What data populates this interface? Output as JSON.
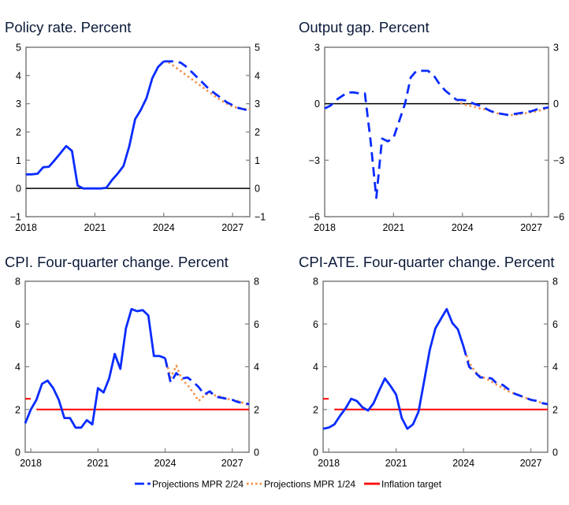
{
  "legend": [
    {
      "label": "Projections MPR 2/24",
      "color": "#0a2cff",
      "style": "dashed"
    },
    {
      "label": "Projections MPR 1/24",
      "color": "#f5914a",
      "style": "dotted"
    },
    {
      "label": "Inflation target",
      "color": "#ff0000",
      "style": "solid"
    }
  ],
  "chart_data": [
    {
      "type": "line",
      "title": "Policy rate. Percent",
      "xlim": [
        "2018Q1",
        "2027Q4"
      ],
      "xticks": [
        "2018",
        "2021",
        "2024",
        "2027"
      ],
      "ylim": [
        -1,
        5
      ],
      "yticks": [
        "−1",
        "0",
        "1",
        "2",
        "3",
        "4",
        "5"
      ],
      "zero_line": true,
      "series": [
        {
          "role": "history",
          "color": "#0a2cff",
          "style": "solid",
          "start": "2018Q1",
          "values": [
            0.5,
            0.5,
            0.52,
            0.75,
            0.77,
            1.0,
            1.25,
            1.5,
            1.33,
            0.1,
            0.0,
            0.0,
            0.0,
            0.0,
            0.02,
            0.3,
            0.53,
            0.8,
            1.5,
            2.45,
            2.78,
            3.2,
            3.9,
            4.3,
            4.5
          ]
        },
        {
          "name": "Projections MPR 2/24",
          "color": "#0a2cff",
          "style": "dashed",
          "start": "2024Q1",
          "values": [
            4.5,
            4.5,
            4.5,
            4.45,
            4.3,
            4.1,
            3.9,
            3.7,
            3.5,
            3.35,
            3.2,
            3.05,
            2.95,
            2.85,
            2.8,
            2.75
          ]
        },
        {
          "name": "Projections MPR 1/24",
          "color": "#f5914a",
          "style": "dotted",
          "start": "2024Q1",
          "values": [
            4.5,
            4.45,
            4.3,
            4.15,
            4.0,
            3.85,
            3.7,
            3.55,
            3.4,
            3.25,
            3.12,
            3.0,
            2.9,
            2.85,
            2.82,
            2.8
          ]
        }
      ]
    },
    {
      "type": "line",
      "title": "Output gap. Percent",
      "xlim": [
        "2018Q1",
        "2027Q4"
      ],
      "xticks": [
        "2018",
        "2021",
        "2024",
        "2027"
      ],
      "ylim": [
        -6,
        3
      ],
      "yticks": [
        "−6",
        "−3",
        "0",
        "3"
      ],
      "zero_line": true,
      "series": [
        {
          "role": "history",
          "color": "#0a2cff",
          "style": "dashed",
          "start": "2018Q1",
          "values": [
            -0.25,
            -0.1,
            0.2,
            0.4,
            0.6,
            0.6,
            0.55,
            0.55,
            -2.0,
            -5.0,
            -1.85,
            -2.0,
            -1.8,
            -0.9,
            0.0,
            1.4,
            1.75,
            1.75,
            1.75,
            1.5,
            1.05,
            0.7,
            0.45,
            0.2
          ]
        },
        {
          "name": "Projections MPR 2/24",
          "color": "#0a2cff",
          "style": "dashed",
          "start": "2023Q4",
          "values": [
            0.2,
            0.2,
            0.15,
            0.0,
            -0.1,
            -0.25,
            -0.4,
            -0.5,
            -0.55,
            -0.6,
            -0.55,
            -0.5,
            -0.45,
            -0.4,
            -0.3,
            -0.25,
            -0.2
          ]
        },
        {
          "name": "Projections MPR 1/24",
          "color": "#f5914a",
          "style": "dotted",
          "start": "2023Q4",
          "values": [
            0.2,
            0.0,
            -0.1,
            -0.15,
            -0.25,
            -0.3,
            -0.4,
            -0.5,
            -0.55,
            -0.6,
            -0.6,
            -0.55,
            -0.5,
            -0.45,
            -0.4,
            -0.3,
            -0.25
          ]
        }
      ]
    },
    {
      "type": "line",
      "title": "CPI. Four-quarter change. Percent",
      "xlim": [
        "2017Q4",
        "2027Q4"
      ],
      "xticks": [
        "2018",
        "2021",
        "2024",
        "2027"
      ],
      "ylim": [
        0,
        8
      ],
      "yticks": [
        "0",
        "2",
        "4",
        "6",
        "8"
      ],
      "zero_line": false,
      "target": [
        {
          "from": "2017Q4",
          "to": "2018Q1",
          "value": 2.5
        },
        {
          "from": "2018Q2",
          "to": "2027Q4",
          "value": 2
        }
      ],
      "series": [
        {
          "role": "history",
          "color": "#0a2cff",
          "style": "solid",
          "start": "2017Q4",
          "values": [
            1.35,
            2.0,
            2.45,
            3.2,
            3.35,
            3.0,
            2.45,
            1.6,
            1.6,
            1.15,
            1.15,
            1.5,
            1.3,
            3.0,
            2.8,
            3.45,
            4.6,
            3.9,
            5.8,
            6.7,
            6.6,
            6.65,
            6.4,
            4.5,
            4.5,
            4.4
          ]
        },
        {
          "name": "Projections MPR 2/24",
          "color": "#0a2cff",
          "style": "dashed",
          "start": "2024Q1",
          "values": [
            4.4,
            3.25,
            3.7,
            3.45,
            3.5,
            3.3,
            3.05,
            2.7,
            2.85,
            2.6,
            2.55,
            2.5,
            2.45,
            2.35,
            2.3,
            2.25
          ]
        },
        {
          "name": "Projections MPR 1/24",
          "color": "#f5914a",
          "style": "dotted",
          "start": "2024Q1",
          "values": [
            4.4,
            3.5,
            4.05,
            3.4,
            3.15,
            2.8,
            2.4,
            2.65,
            2.8,
            2.65,
            2.6,
            2.5,
            2.45,
            2.4,
            2.3,
            2.2
          ]
        }
      ]
    },
    {
      "type": "line",
      "title": "CPI-ATE. Four-quarter change. Percent",
      "xlim": [
        "2017Q4",
        "2027Q4"
      ],
      "xticks": [
        "2018",
        "2021",
        "2024",
        "2027"
      ],
      "ylim": [
        0,
        8
      ],
      "yticks": [
        "0",
        "2",
        "4",
        "6",
        "8"
      ],
      "zero_line": false,
      "target": [
        {
          "from": "2017Q4",
          "to": "2018Q1",
          "value": 2.5
        },
        {
          "from": "2018Q2",
          "to": "2027Q4",
          "value": 2
        }
      ],
      "series": [
        {
          "role": "history",
          "color": "#0a2cff",
          "style": "solid",
          "start": "2017Q4",
          "values": [
            1.1,
            1.15,
            1.3,
            1.7,
            2.05,
            2.5,
            2.4,
            2.1,
            1.95,
            2.3,
            2.9,
            3.45,
            3.1,
            2.7,
            1.6,
            1.1,
            1.3,
            1.9,
            3.35,
            4.8,
            5.8,
            6.25,
            6.7,
            6.05,
            5.75,
            4.95
          ]
        },
        {
          "name": "Projections MPR 2/24",
          "color": "#0a2cff",
          "style": "dashed",
          "start": "2024Q1",
          "values": [
            4.95,
            4.0,
            3.75,
            3.5,
            3.5,
            3.45,
            3.2,
            3.15,
            2.95,
            2.75,
            2.65,
            2.55,
            2.45,
            2.4,
            2.3,
            2.25
          ]
        },
        {
          "name": "Projections MPR 1/24",
          "color": "#f5914a",
          "style": "dotted",
          "start": "2024Q1",
          "values": [
            4.95,
            4.2,
            3.8,
            3.55,
            3.45,
            3.3,
            3.15,
            3.0,
            2.85,
            2.75,
            2.65,
            2.55,
            2.45,
            2.4,
            2.3,
            2.2
          ]
        }
      ]
    }
  ]
}
